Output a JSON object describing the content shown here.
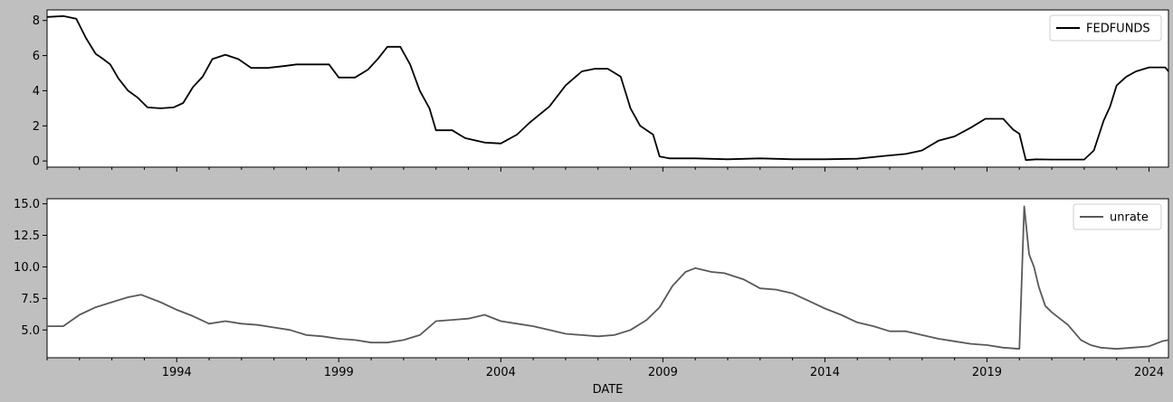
{
  "chart_data": [
    {
      "type": "line",
      "xlim": [
        1990.0,
        2024.6
      ],
      "ylim": [
        -0.35,
        8.6
      ],
      "yticks": [
        0,
        2,
        4,
        6,
        8
      ],
      "ytick_labels": [
        "0",
        "2",
        "4",
        "6",
        "8"
      ],
      "legend_position": "top-right",
      "grid": false,
      "series": [
        {
          "name": "FEDFUNDS",
          "color": "#000000",
          "x": [
            1990.0,
            1990.5,
            1990.9,
            1991.2,
            1991.5,
            1991.7,
            1991.95,
            1992.2,
            1992.5,
            1992.8,
            1993.1,
            1993.5,
            1993.9,
            1994.2,
            1994.5,
            1994.8,
            1995.1,
            1995.5,
            1995.9,
            1996.3,
            1996.8,
            1997.3,
            1997.7,
            1998.2,
            1998.7,
            1999.0,
            1999.5,
            1999.9,
            2000.2,
            2000.5,
            2000.9,
            2001.2,
            2001.5,
            2001.8,
            2002.0,
            2002.5,
            2002.9,
            2003.5,
            2004.0,
            2004.5,
            2004.9,
            2005.5,
            2006.0,
            2006.5,
            2006.9,
            2007.3,
            2007.7,
            2008.0,
            2008.3,
            2008.7,
            2008.9,
            2009.2,
            2010.0,
            2011.0,
            2012.0,
            2013.0,
            2014.0,
            2015.0,
            2015.9,
            2016.5,
            2017.0,
            2017.5,
            2018.0,
            2018.5,
            2018.95,
            2019.5,
            2019.8,
            2020.0,
            2020.2,
            2020.5,
            2021.0,
            2021.5,
            2022.0,
            2022.3,
            2022.6,
            2022.8,
            2023.0,
            2023.3,
            2023.6,
            2024.0,
            2024.5,
            2024.6
          ],
          "y": [
            8.2,
            8.25,
            8.1,
            7.0,
            6.1,
            5.85,
            5.5,
            4.7,
            4.0,
            3.6,
            3.05,
            3.0,
            3.05,
            3.3,
            4.2,
            4.8,
            5.8,
            6.05,
            5.8,
            5.3,
            5.3,
            5.4,
            5.5,
            5.5,
            5.5,
            4.75,
            4.75,
            5.2,
            5.8,
            6.5,
            6.5,
            5.5,
            4.0,
            3.0,
            1.75,
            1.75,
            1.3,
            1.05,
            1.0,
            1.5,
            2.2,
            3.1,
            4.3,
            5.1,
            5.25,
            5.25,
            4.8,
            3.0,
            2.0,
            1.5,
            0.25,
            0.15,
            0.15,
            0.1,
            0.15,
            0.1,
            0.1,
            0.13,
            0.3,
            0.4,
            0.6,
            1.15,
            1.4,
            1.9,
            2.4,
            2.4,
            1.8,
            1.55,
            0.05,
            0.09,
            0.08,
            0.08,
            0.08,
            0.6,
            2.3,
            3.1,
            4.3,
            4.8,
            5.1,
            5.33,
            5.33,
            5.1
          ]
        }
      ]
    },
    {
      "type": "line",
      "xlim": [
        1990.0,
        2024.6
      ],
      "ylim": [
        2.8,
        15.4
      ],
      "yticks": [
        5.0,
        7.5,
        10.0,
        12.5,
        15.0
      ],
      "ytick_labels": [
        "5.0",
        "7.5",
        "10.0",
        "12.5",
        "15.0"
      ],
      "xticks": [
        1994,
        1999,
        2004,
        2009,
        2014,
        2019,
        2024
      ],
      "xtick_labels": [
        "1994",
        "1999",
        "2004",
        "2009",
        "2014",
        "2019",
        "2024"
      ],
      "xlabel": "DATE",
      "legend_position": "top-right",
      "grid": false,
      "series": [
        {
          "name": "unrate",
          "color": "#595959",
          "x": [
            1990.0,
            1990.5,
            1991.0,
            1991.5,
            1992.0,
            1992.5,
            1992.9,
            1993.5,
            1994.0,
            1994.5,
            1995.0,
            1995.5,
            1996.0,
            1996.5,
            1997.0,
            1997.5,
            1998.0,
            1998.5,
            1999.0,
            1999.5,
            2000.0,
            2000.5,
            2001.0,
            2001.5,
            2002.0,
            2002.5,
            2003.0,
            2003.5,
            2004.0,
            2004.5,
            2005.0,
            2005.5,
            2006.0,
            2006.5,
            2007.0,
            2007.5,
            2008.0,
            2008.5,
            2008.9,
            2009.3,
            2009.7,
            2010.0,
            2010.5,
            2010.9,
            2011.5,
            2012.0,
            2012.5,
            2013.0,
            2013.5,
            2014.0,
            2014.5,
            2015.0,
            2015.5,
            2016.0,
            2016.5,
            2017.0,
            2017.5,
            2018.0,
            2018.5,
            2019.0,
            2019.5,
            2020.0,
            2020.15,
            2020.3,
            2020.45,
            2020.6,
            2020.8,
            2021.0,
            2021.5,
            2021.9,
            2022.2,
            2022.5,
            2023.0,
            2023.5,
            2024.0,
            2024.4,
            2024.6
          ],
          "y": [
            5.3,
            5.3,
            6.2,
            6.8,
            7.2,
            7.6,
            7.8,
            7.2,
            6.6,
            6.1,
            5.5,
            5.7,
            5.5,
            5.4,
            5.2,
            5.0,
            4.6,
            4.5,
            4.3,
            4.2,
            4.0,
            4.0,
            4.2,
            4.6,
            5.7,
            5.8,
            5.9,
            6.2,
            5.7,
            5.5,
            5.3,
            5.0,
            4.7,
            4.6,
            4.5,
            4.6,
            5.0,
            5.8,
            6.8,
            8.5,
            9.6,
            9.9,
            9.6,
            9.5,
            9.0,
            8.3,
            8.2,
            7.9,
            7.3,
            6.7,
            6.2,
            5.6,
            5.3,
            4.9,
            4.9,
            4.6,
            4.3,
            4.1,
            3.9,
            3.8,
            3.6,
            3.5,
            14.8,
            11.0,
            10.0,
            8.4,
            6.9,
            6.4,
            5.4,
            4.2,
            3.8,
            3.6,
            3.5,
            3.6,
            3.7,
            4.1,
            4.2
          ]
        }
      ]
    }
  ]
}
